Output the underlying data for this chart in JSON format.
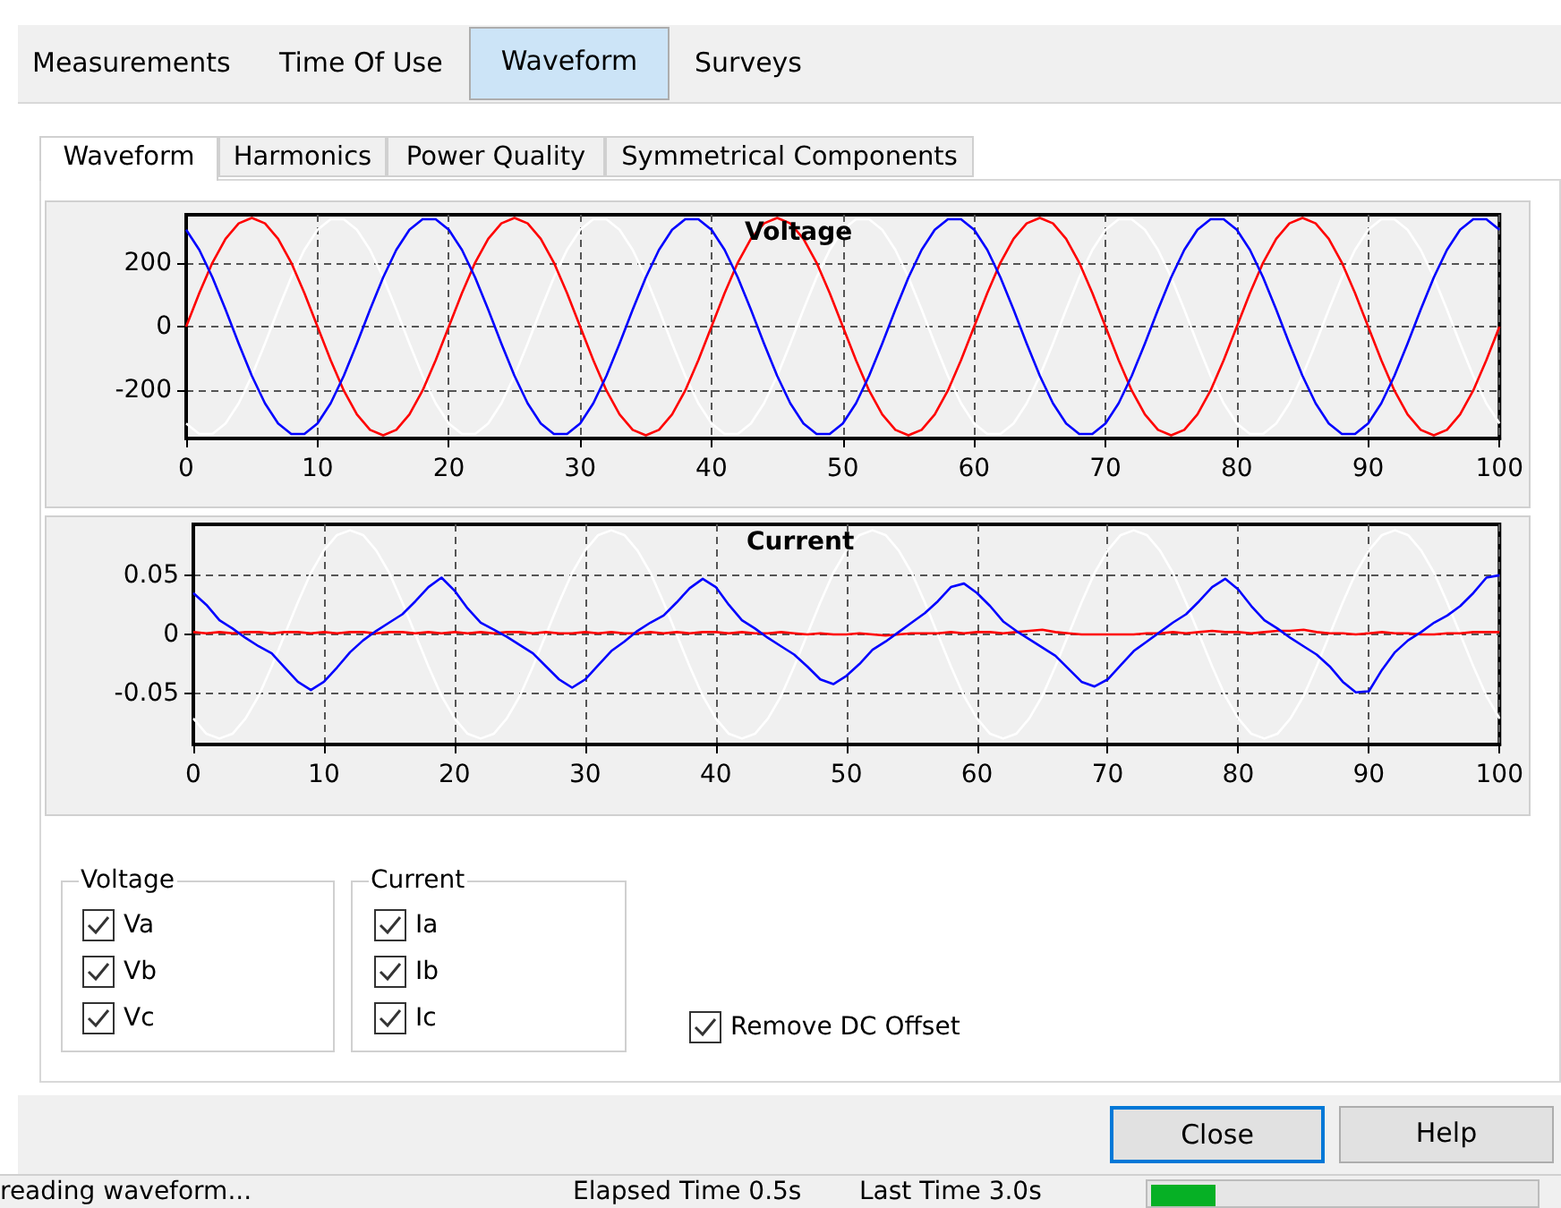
{
  "chart_data": [
    {
      "type": "line",
      "title": "Voltage",
      "x": [
        0,
        1,
        2,
        3,
        4,
        5,
        6,
        7,
        8,
        9,
        10,
        11,
        12,
        13,
        14,
        15,
        16,
        17,
        18,
        19,
        20,
        21,
        22,
        23,
        24,
        25,
        26,
        27,
        28,
        29,
        30,
        31,
        32,
        33,
        34,
        35,
        36,
        37,
        38,
        39,
        40,
        41,
        42,
        43,
        44,
        45,
        46,
        47,
        48,
        49,
        50,
        51,
        52,
        53,
        54,
        55,
        56,
        57,
        58,
        59,
        60,
        61,
        62,
        63,
        64,
        65,
        66,
        67,
        68,
        69,
        70,
        71,
        72,
        73,
        74,
        75,
        76,
        77,
        78,
        79,
        80,
        81,
        82,
        83,
        84,
        85,
        86,
        87,
        88,
        89,
        90,
        91,
        92,
        93,
        94,
        95,
        96,
        97,
        98,
        99,
        100
      ],
      "series": [
        {
          "color": "#ffffff",
          "values": [
            -303,
            -336,
            -336,
            -303,
            -240,
            -154,
            -53,
            53,
            154,
            240,
            303,
            336,
            336,
            303,
            240,
            154,
            53,
            -53,
            -154,
            -240,
            -303,
            -336,
            -336,
            -303,
            -240,
            -154,
            -53,
            53,
            154,
            240,
            303,
            336,
            336,
            303,
            240,
            154,
            53,
            -53,
            -154,
            -240,
            -303,
            -336,
            -336,
            -303,
            -240,
            -154,
            -53,
            53,
            154,
            240,
            303,
            336,
            336,
            303,
            240,
            154,
            53,
            -53,
            -154,
            -240,
            -303,
            -336,
            -336,
            -303,
            -240,
            -154,
            -53,
            53,
            154,
            240,
            303,
            336,
            336,
            303,
            240,
            154,
            53,
            -53,
            -154,
            -240,
            -303,
            -336,
            -336,
            -303,
            -240,
            -154,
            -53,
            53,
            154,
            240,
            303,
            336,
            336,
            303,
            240,
            154,
            53,
            -53,
            -154,
            -240,
            -303
          ]
        },
        {
          "color": "#ff0000",
          "values": [
            0,
            105,
            200,
            275,
            323,
            340,
            323,
            275,
            200,
            105,
            0,
            -105,
            -200,
            -275,
            -323,
            -340,
            -323,
            -275,
            -200,
            -105,
            0,
            105,
            200,
            275,
            323,
            340,
            323,
            275,
            200,
            105,
            0,
            -105,
            -200,
            -275,
            -323,
            -340,
            -323,
            -275,
            -200,
            -105,
            0,
            105,
            200,
            275,
            323,
            340,
            323,
            275,
            200,
            105,
            0,
            -105,
            -200,
            -275,
            -323,
            -340,
            -323,
            -275,
            -200,
            -105,
            0,
            105,
            200,
            275,
            323,
            340,
            323,
            275,
            200,
            105,
            0,
            -105,
            -200,
            -275,
            -323,
            -340,
            -323,
            -275,
            -200,
            -105,
            0,
            105,
            200,
            275,
            323,
            340,
            323,
            275,
            200,
            105,
            0,
            -105,
            -200,
            -275,
            -323,
            -340,
            -323,
            -275,
            -200,
            -105,
            0
          ]
        },
        {
          "color": "#0000ff",
          "values": [
            303,
            240,
            154,
            53,
            -53,
            -154,
            -240,
            -303,
            -336,
            -336,
            -303,
            -240,
            -154,
            -53,
            53,
            154,
            240,
            303,
            336,
            336,
            303,
            240,
            154,
            53,
            -53,
            -154,
            -240,
            -303,
            -336,
            -336,
            -303,
            -240,
            -154,
            -53,
            53,
            154,
            240,
            303,
            336,
            336,
            303,
            240,
            154,
            53,
            -53,
            -154,
            -240,
            -303,
            -336,
            -336,
            -303,
            -240,
            -154,
            -53,
            53,
            154,
            240,
            303,
            336,
            336,
            303,
            240,
            154,
            53,
            -53,
            -154,
            -240,
            -303,
            -336,
            -336,
            -303,
            -240,
            -154,
            -53,
            53,
            154,
            240,
            303,
            336,
            336,
            303,
            240,
            154,
            53,
            -53,
            -154,
            -240,
            -303,
            -336,
            -336,
            -303,
            -240,
            -154,
            -53,
            53,
            154,
            240,
            303,
            336,
            336,
            303
          ]
        }
      ],
      "xlim": [
        0,
        100
      ],
      "xticks": [
        0,
        10,
        20,
        30,
        40,
        50,
        60,
        70,
        80,
        90,
        100
      ],
      "ylim": [
        -350,
        350
      ],
      "yticks": [
        -200,
        0,
        200
      ],
      "grid": true,
      "marker": "none",
      "line_style": "solid"
    },
    {
      "type": "line",
      "title": "Current",
      "x": [
        0,
        1,
        2,
        3,
        4,
        5,
        6,
        7,
        8,
        9,
        10,
        11,
        12,
        13,
        14,
        15,
        16,
        17,
        18,
        19,
        20,
        21,
        22,
        23,
        24,
        25,
        26,
        27,
        28,
        29,
        30,
        31,
        32,
        33,
        34,
        35,
        36,
        37,
        38,
        39,
        40,
        41,
        42,
        43,
        44,
        45,
        46,
        47,
        48,
        49,
        50,
        51,
        52,
        53,
        54,
        55,
        56,
        57,
        58,
        59,
        60,
        61,
        62,
        63,
        64,
        65,
        66,
        67,
        68,
        69,
        70,
        71,
        72,
        73,
        74,
        75,
        76,
        77,
        78,
        79,
        80,
        81,
        82,
        83,
        84,
        85,
        86,
        87,
        88,
        89,
        90,
        91,
        92,
        93,
        94,
        95,
        96,
        97,
        98,
        99,
        100
      ],
      "series": [
        {
          "color": "#ffffff",
          "values": [
            -0.071,
            -0.084,
            -0.088,
            -0.084,
            -0.071,
            -0.052,
            -0.027,
            0,
            0.027,
            0.052,
            0.071,
            0.084,
            0.088,
            0.084,
            0.071,
            0.052,
            0.027,
            0,
            -0.027,
            -0.052,
            -0.071,
            -0.084,
            -0.088,
            -0.084,
            -0.071,
            -0.052,
            -0.027,
            0,
            0.027,
            0.052,
            0.071,
            0.084,
            0.088,
            0.084,
            0.071,
            0.052,
            0.027,
            0,
            -0.027,
            -0.052,
            -0.071,
            -0.084,
            -0.088,
            -0.084,
            -0.071,
            -0.052,
            -0.027,
            0,
            0.027,
            0.052,
            0.071,
            0.084,
            0.088,
            0.084,
            0.071,
            0.052,
            0.027,
            0,
            -0.027,
            -0.052,
            -0.071,
            -0.084,
            -0.088,
            -0.084,
            -0.071,
            -0.052,
            -0.027,
            0,
            0.027,
            0.052,
            0.071,
            0.084,
            0.088,
            0.084,
            0.071,
            0.052,
            0.027,
            0,
            -0.027,
            -0.052,
            -0.071,
            -0.084,
            -0.088,
            -0.084,
            -0.071,
            -0.052,
            -0.027,
            0,
            0.027,
            0.052,
            0.071,
            0.084,
            0.088,
            0.084,
            0.071,
            0.052,
            0.027,
            0,
            -0.027,
            -0.052,
            -0.071
          ]
        },
        {
          "color": "#ff0000",
          "values": [
            0.002,
            0.001,
            0.002,
            0.001,
            0.002,
            0.002,
            0.001,
            0.002,
            0.002,
            0.001,
            0.002,
            0.001,
            0.002,
            0.002,
            0.001,
            0.002,
            0.002,
            0.001,
            0.002,
            0.001,
            0.002,
            0.001,
            0.002,
            0.001,
            0.002,
            0.002,
            0.001,
            0.002,
            0.001,
            0.001,
            0.002,
            0.001,
            0.002,
            0.001,
            0.001,
            0.002,
            0.001,
            0.002,
            0.001,
            0.002,
            0.002,
            0.001,
            0.002,
            0.001,
            0.001,
            0.002,
            0.001,
            0,
            0.001,
            0,
            0,
            0.001,
            0,
            -0.001,
            0,
            0.001,
            0.001,
            0.001,
            0.002,
            0.001,
            0.002,
            0.002,
            0.001,
            0.002,
            0.003,
            0.004,
            0.002,
            0.001,
            0,
            0,
            0,
            0,
            0,
            0.001,
            0.001,
            0.002,
            0.001,
            0.002,
            0.003,
            0.002,
            0.002,
            0.001,
            0.002,
            0.003,
            0.003,
            0.004,
            0.002,
            0.001,
            0.001,
            0,
            0.001,
            0.002,
            0.001,
            0.001,
            0,
            0,
            0.001,
            0.001,
            0.002,
            0.002,
            0.002
          ]
        },
        {
          "color": "#0000ff",
          "values": [
            0.035,
            0.025,
            0.012,
            0.005,
            -0.003,
            -0.01,
            -0.016,
            -0.028,
            -0.04,
            -0.047,
            -0.04,
            -0.028,
            -0.015,
            -0.005,
            0.003,
            0.01,
            0.017,
            0.028,
            0.04,
            0.048,
            0.037,
            0.022,
            0.01,
            0.004,
            -0.002,
            -0.009,
            -0.016,
            -0.027,
            -0.038,
            -0.045,
            -0.038,
            -0.026,
            -0.014,
            -0.006,
            0.003,
            0.01,
            0.016,
            0.027,
            0.039,
            0.047,
            0.04,
            0.025,
            0.012,
            0.005,
            -0.003,
            -0.01,
            -0.017,
            -0.027,
            -0.038,
            -0.042,
            -0.035,
            -0.025,
            -0.013,
            -0.006,
            0.002,
            0.01,
            0.018,
            0.028,
            0.04,
            0.043,
            0.035,
            0.024,
            0.011,
            0.003,
            -0.004,
            -0.011,
            -0.018,
            -0.029,
            -0.04,
            -0.044,
            -0.038,
            -0.026,
            -0.014,
            -0.006,
            0.002,
            0.01,
            0.017,
            0.028,
            0.04,
            0.047,
            0.038,
            0.024,
            0.012,
            0.005,
            -0.003,
            -0.01,
            -0.017,
            -0.027,
            -0.04,
            -0.049,
            -0.048,
            -0.03,
            -0.015,
            -0.005,
            0.002,
            0.01,
            0.016,
            0.024,
            0.035,
            0.048,
            0.05
          ]
        }
      ],
      "xlim": [
        0,
        100
      ],
      "xticks": [
        0,
        10,
        20,
        30,
        40,
        50,
        60,
        70,
        80,
        90,
        100
      ],
      "ylim": [
        -0.093,
        0.093
      ],
      "yticks": [
        -0.05,
        0,
        0.05
      ],
      "grid": true,
      "marker": "none",
      "line_style": "solid"
    },
    {
      "type": "other",
      "annotations": [
        "Measurements",
        "Time Of Use",
        "Waveform",
        "Surveys",
        "Waveform",
        "Harmonics",
        "Power Quality",
        "Symmetrical Components",
        "Voltage",
        "Va",
        "Vb",
        "Vc",
        "Current",
        "Ia",
        "Ib",
        "Ic",
        "Remove DC Offset",
        "Close",
        "Help",
        "reading waveform...",
        "Elapsed Time 0.5s",
        "Last Time 3.0s"
      ]
    }
  ]
}
